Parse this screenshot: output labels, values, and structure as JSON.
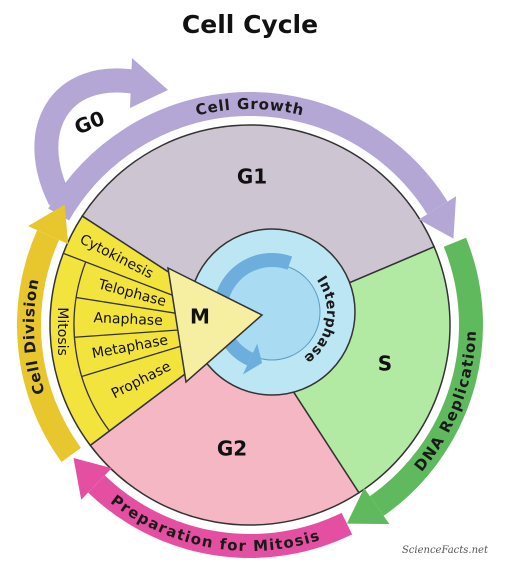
{
  "title": "Cell Cycle",
  "phases": {
    "g0": "G0",
    "g1": "G1",
    "s": "S",
    "g2": "G2",
    "m": "M"
  },
  "mitosis": {
    "label": "Mitosis",
    "stages": [
      "Cytokinesis",
      "Telophase",
      "Anaphase",
      "Metaphase",
      "Prophase"
    ]
  },
  "arrows": {
    "cell_growth": "Cell Growth",
    "dna_replication": "DNA Replication",
    "preparation": "Preparation for Mitosis",
    "cell_division": "Cell Division"
  },
  "interphase": "Interphase",
  "logo": "ScienceFacts.net"
}
